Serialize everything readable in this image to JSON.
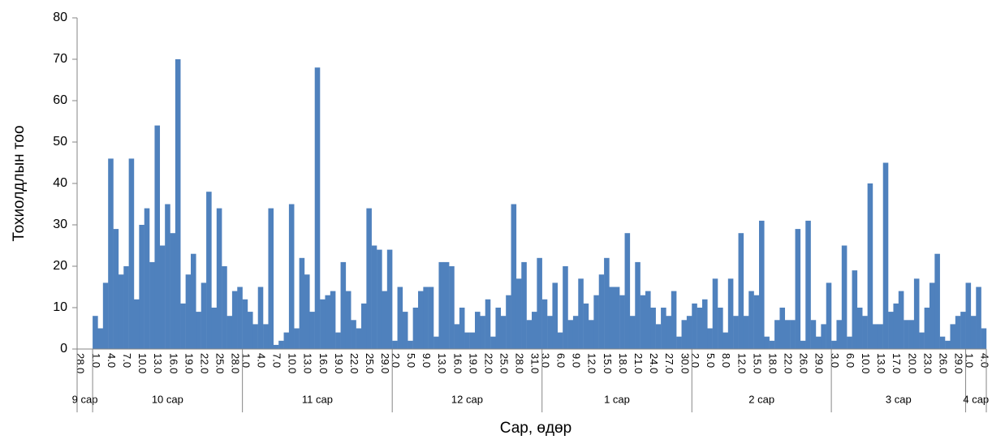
{
  "chart_data": {
    "type": "bar",
    "y_label": "Тохиолдлын тоо",
    "x_label": "Сар, өдөр",
    "color": "#4f81bd",
    "ylim": [
      0,
      80
    ],
    "yticks": [
      0,
      10,
      20,
      30,
      40,
      50,
      60,
      70,
      80
    ],
    "grid": false,
    "categories": [
      "28.0",
      null,
      null,
      "1.0",
      null,
      null,
      "4.0",
      null,
      null,
      "7.0",
      null,
      null,
      "10.0",
      null,
      null,
      "13.0",
      null,
      null,
      "16.0",
      null,
      null,
      "19.0",
      null,
      null,
      "22.0",
      null,
      null,
      "25.0",
      null,
      null,
      "28.0",
      null,
      "1.0",
      null,
      null,
      "4.0",
      null,
      null,
      "7.0",
      null,
      null,
      "10.0",
      null,
      null,
      "13.0",
      null,
      null,
      "16.0",
      null,
      null,
      "19.0",
      null,
      null,
      "22.0",
      null,
      null,
      "25.0",
      null,
      null,
      "29.0",
      null,
      "2.0",
      null,
      null,
      "5.0",
      null,
      null,
      "9.0",
      null,
      null,
      "13.0",
      null,
      null,
      "16.0",
      null,
      null,
      "19.0",
      null,
      null,
      "22.0",
      null,
      null,
      "25.0",
      null,
      null,
      "28.0",
      null,
      null,
      "31.0",
      null,
      "3.0",
      null,
      null,
      "6.0",
      null,
      null,
      "9.0",
      null,
      null,
      "12.0",
      null,
      null,
      "15.0",
      null,
      null,
      "18.0",
      null,
      null,
      "21.0",
      null,
      null,
      "24.0",
      null,
      null,
      "27.0",
      null,
      null,
      "30.0",
      null,
      "2.0",
      null,
      null,
      "5.0",
      null,
      null,
      "8.0",
      null,
      null,
      "12.0",
      null,
      null,
      "15.0",
      null,
      null,
      "18.0",
      null,
      null,
      "22.0",
      null,
      null,
      "26.0",
      null,
      null,
      "29.0",
      null,
      null,
      "3.0",
      null,
      null,
      "6.0",
      null,
      null,
      "10.0",
      null,
      null,
      "13.0",
      null,
      null,
      "17.0",
      null,
      null,
      "20.0",
      null,
      null,
      "23.0",
      null,
      null,
      "26.0",
      null,
      null,
      "29.0",
      null,
      "1.0",
      null,
      null,
      "4.0"
    ],
    "month_groups": [
      {
        "name": "9 сар",
        "count": 3
      },
      {
        "name": "10 сар",
        "count": 29
      },
      {
        "name": "11 сар",
        "count": 29
      },
      {
        "name": "12 сар",
        "count": 29
      },
      {
        "name": "1 сар",
        "count": 29
      },
      {
        "name": "2 сар",
        "count": 27
      },
      {
        "name": "3 сар",
        "count": 26
      },
      {
        "name": "4 сар",
        "count": 4
      }
    ],
    "values": [
      0,
      0,
      0,
      8,
      5,
      16,
      46,
      29,
      18,
      20,
      46,
      12,
      30,
      34,
      21,
      54,
      25,
      35,
      28,
      70,
      11,
      18,
      23,
      9,
      16,
      38,
      10,
      34,
      20,
      8,
      14,
      15,
      12,
      9,
      6,
      15,
      6,
      34,
      1,
      2,
      4,
      35,
      5,
      22,
      18,
      9,
      68,
      12,
      13,
      14,
      4,
      21,
      14,
      7,
      5,
      11,
      34,
      25,
      24,
      14,
      24,
      2,
      15,
      9,
      2,
      10,
      14,
      15,
      15,
      3,
      21,
      21,
      20,
      6,
      10,
      4,
      4,
      9,
      8,
      12,
      3,
      10,
      8,
      13,
      35,
      17,
      21,
      7,
      9,
      22,
      12,
      8,
      16,
      4,
      20,
      7,
      8,
      17,
      11,
      7,
      13,
      18,
      22,
      15,
      15,
      13,
      28,
      8,
      21,
      13,
      14,
      10,
      6,
      10,
      8,
      14,
      3,
      7,
      8,
      11,
      10,
      12,
      5,
      17,
      10,
      4,
      17,
      8,
      28,
      8,
      14,
      13,
      31,
      3,
      2,
      7,
      10,
      7,
      7,
      29,
      2,
      31,
      7,
      3,
      6,
      16,
      2,
      7,
      25,
      3,
      19,
      10,
      8,
      40,
      6,
      6,
      45,
      9,
      11,
      14,
      7,
      7,
      17,
      4,
      10,
      16,
      23,
      3,
      2,
      6,
      8,
      9,
      16,
      8,
      15,
      5
    ]
  }
}
